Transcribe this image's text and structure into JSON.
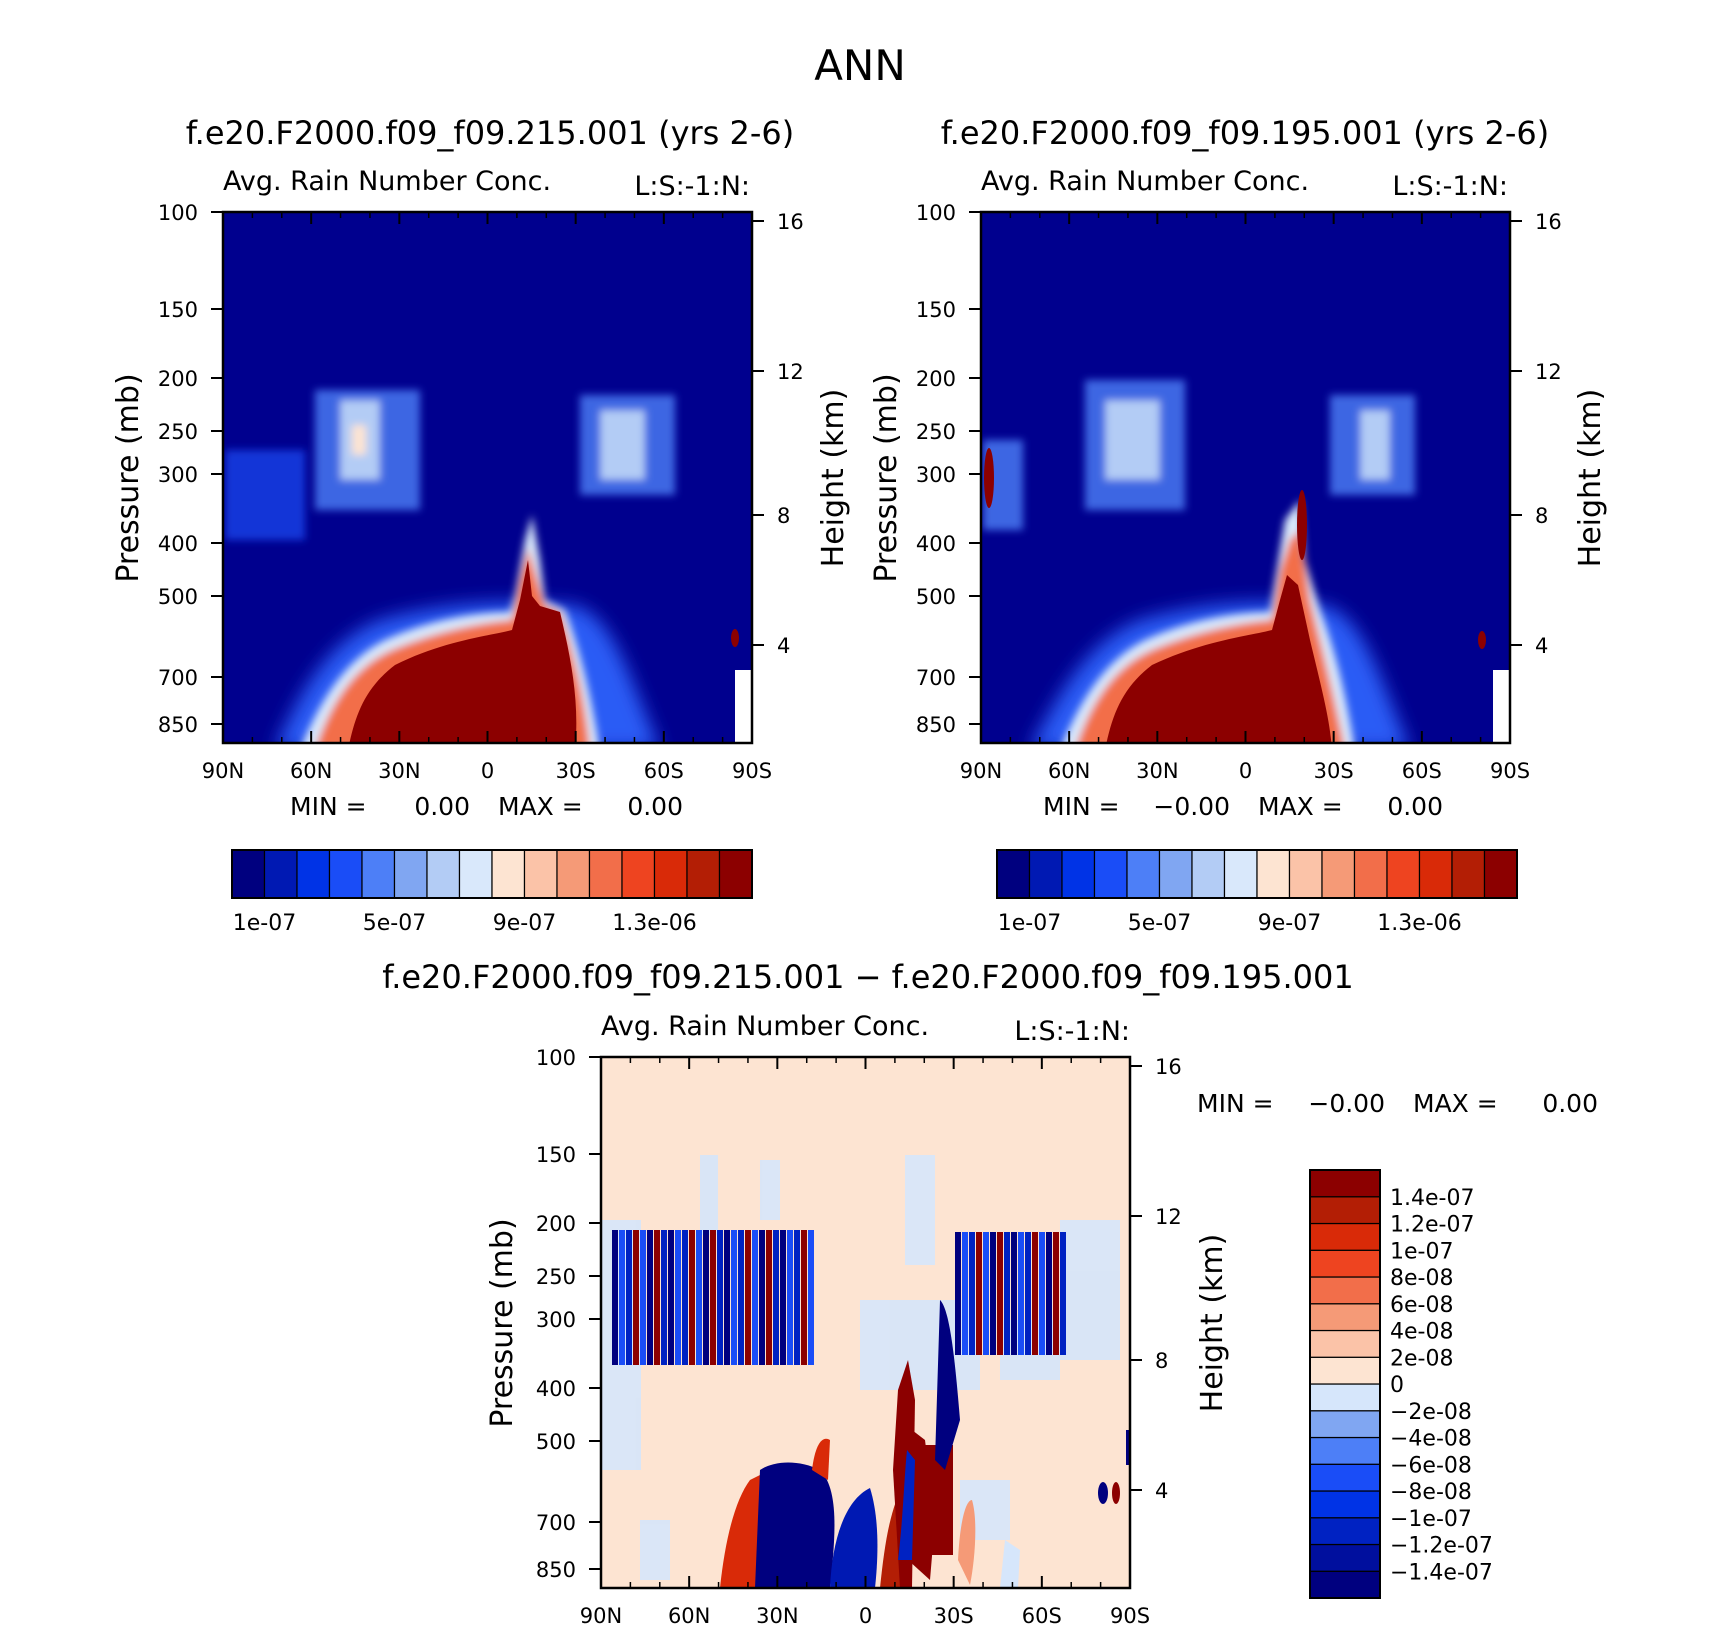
{
  "figure": {
    "title": "ANN"
  },
  "colors": {
    "abs_palette": [
      "#00007f",
      "#0019b3",
      "#0033e6",
      "#1a4df7",
      "#4d7ff7",
      "#80a6f2",
      "#b3ccf5",
      "#d9e8fb",
      "#fde4d2",
      "#fbc3a8",
      "#f59a77",
      "#f26e4a",
      "#ee4420",
      "#d92a08",
      "#b31e05",
      "#8c0000"
    ],
    "diff_palette": [
      "#00007f",
      "#000f9e",
      "#0022c2",
      "#0033e6",
      "#1a4df7",
      "#4d7ff7",
      "#80a6f2",
      "#d6e6fb",
      "#fde4d2",
      "#fbc3a8",
      "#f59a77",
      "#f26e4a",
      "#ee4420",
      "#d92a08",
      "#b31e05",
      "#8c0000"
    ],
    "abs_background": "#00008e",
    "diff_background": "#fde4d2"
  },
  "chart_data": [
    {
      "id": "panel_a",
      "type": "heatmap",
      "case_title": "f.e20.F2000.f09_f09.215.001 (yrs 2-6)",
      "field_title": "Avg. Rain Number Conc.",
      "field_tag": "L:S:-1:N:",
      "ylabel": "Pressure (mb)",
      "ylabel_right": "Height (km)",
      "x_ticks": [
        "90N",
        "60N",
        "30N",
        "0",
        "30S",
        "60S",
        "90S"
      ],
      "y_ticks": [
        "100",
        "150",
        "200",
        "250",
        "300",
        "400",
        "500",
        "700",
        "850"
      ],
      "y_right_ticks": [
        "16",
        "12",
        "8",
        "4"
      ],
      "min_label": "MIN =",
      "min_value": "0.00",
      "max_label": "MAX =",
      "max_value": "0.00",
      "colorbar_labels": [
        "1e-07",
        "5e-07",
        "9e-07",
        "1.3e-06"
      ]
    },
    {
      "id": "panel_b",
      "type": "heatmap",
      "case_title": "f.e20.F2000.f09_f09.195.001 (yrs 2-6)",
      "field_title": "Avg. Rain Number Conc.",
      "field_tag": "L:S:-1:N:",
      "ylabel": "Pressure (mb)",
      "ylabel_right": "Height (km)",
      "x_ticks": [
        "90N",
        "60N",
        "30N",
        "0",
        "30S",
        "60S",
        "90S"
      ],
      "y_ticks": [
        "100",
        "150",
        "200",
        "250",
        "300",
        "400",
        "500",
        "700",
        "850"
      ],
      "y_right_ticks": [
        "16",
        "12",
        "8",
        "4"
      ],
      "min_label": "MIN =",
      "min_value": "−0.00",
      "max_label": "MAX =",
      "max_value": "0.00",
      "colorbar_labels": [
        "1e-07",
        "5e-07",
        "9e-07",
        "1.3e-06"
      ]
    },
    {
      "id": "panel_diff",
      "type": "heatmap",
      "case_title": "f.e20.F2000.f09_f09.215.001 − f.e20.F2000.f09_f09.195.001",
      "field_title": "Avg. Rain Number Conc.",
      "field_tag": "L:S:-1:N:",
      "ylabel": "Pressure (mb)",
      "ylabel_right": "Height (km)",
      "x_ticks": [
        "90N",
        "60N",
        "30N",
        "0",
        "30S",
        "60S",
        "90S"
      ],
      "y_ticks": [
        "100",
        "150",
        "200",
        "250",
        "300",
        "400",
        "500",
        "700",
        "850"
      ],
      "y_right_ticks": [
        "16",
        "12",
        "8",
        "4"
      ],
      "min_label": "MIN =",
      "min_value": "−0.00",
      "max_label": "MAX =",
      "max_value": "0.00",
      "colorbar_labels": [
        "1.4e-07",
        "1.2e-07",
        "1e-07",
        "8e-08",
        "6e-08",
        "4e-08",
        "2e-08",
        "0",
        "−2e-08",
        "−4e-08",
        "−6e-08",
        "−8e-08",
        "−1e-07",
        "−1.2e-07",
        "−1.4e-07"
      ]
    }
  ]
}
